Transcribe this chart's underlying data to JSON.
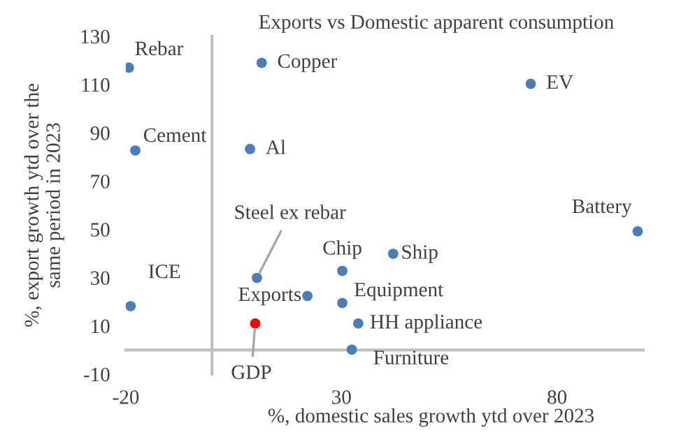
{
  "chart_data": {
    "type": "scatter",
    "title": "Exports vs Domestic apparent consumption",
    "xlabel": "%, domestic sales growth ytd over 2023",
    "ylabel": "%, export growth ytd over the\nsame period in 2023",
    "x": [
      -19.3,
      11.5,
      -17.8,
      8.8,
      73.9,
      98.7,
      10.4,
      30.2,
      42,
      -18.9,
      22.1,
      30.2,
      33.9,
      32.4,
      10
    ],
    "values": [
      117,
      119,
      82.7,
      83.3,
      110.3,
      49.2,
      29.9,
      32.8,
      39.9,
      18.2,
      22.4,
      19.5,
      11,
      0.2,
      11
    ],
    "colors": [
      "#4a7ebb",
      "#4a7ebb",
      "#4a7ebb",
      "#4a7ebb",
      "#4a7ebb",
      "#4a7ebb",
      "#4a7ebb",
      "#4a7ebb",
      "#4a7ebb",
      "#4a7ebb",
      "#4a7ebb",
      "#4a7ebb",
      "#4a7ebb",
      "#4a7ebb",
      "#ff0000"
    ],
    "annotations": [
      {
        "text": "Rebar",
        "x": -19.3,
        "y": 117
      },
      {
        "text": "Copper",
        "x": 11.5,
        "y": 119
      },
      {
        "text": "Cement",
        "x": -17.8,
        "y": 82.7
      },
      {
        "text": "Al",
        "x": 8.8,
        "y": 83.3
      },
      {
        "text": "EV",
        "x": 73.9,
        "y": 110.3
      },
      {
        "text": "Battery",
        "x": 98.7,
        "y": 49.2
      },
      {
        "text": "Steel ex rebar",
        "x": 10.4,
        "y": 29.9
      },
      {
        "text": "Chip",
        "x": 30.2,
        "y": 32.8
      },
      {
        "text": "Ship",
        "x": 42,
        "y": 39.9
      },
      {
        "text": "ICE",
        "x": -18.9,
        "y": 18.2
      },
      {
        "text": "Exports",
        "x": 22.1,
        "y": 22.4
      },
      {
        "text": "Equipment",
        "x": 30.2,
        "y": 19.5
      },
      {
        "text": "HH appliance",
        "x": 33.9,
        "y": 11
      },
      {
        "text": "Furniture",
        "x": 32.4,
        "y": 0.2
      },
      {
        "text": "GDP",
        "x": 10,
        "y": 11
      }
    ],
    "xlim": [
      -20,
      100
    ],
    "xticks": [
      -20,
      30,
      80
    ],
    "ylim": [
      -10,
      130
    ],
    "yticks": [
      -10,
      10,
      30,
      50,
      70,
      90,
      110,
      130
    ],
    "marker": "circle",
    "grid": false,
    "legend": false
  }
}
